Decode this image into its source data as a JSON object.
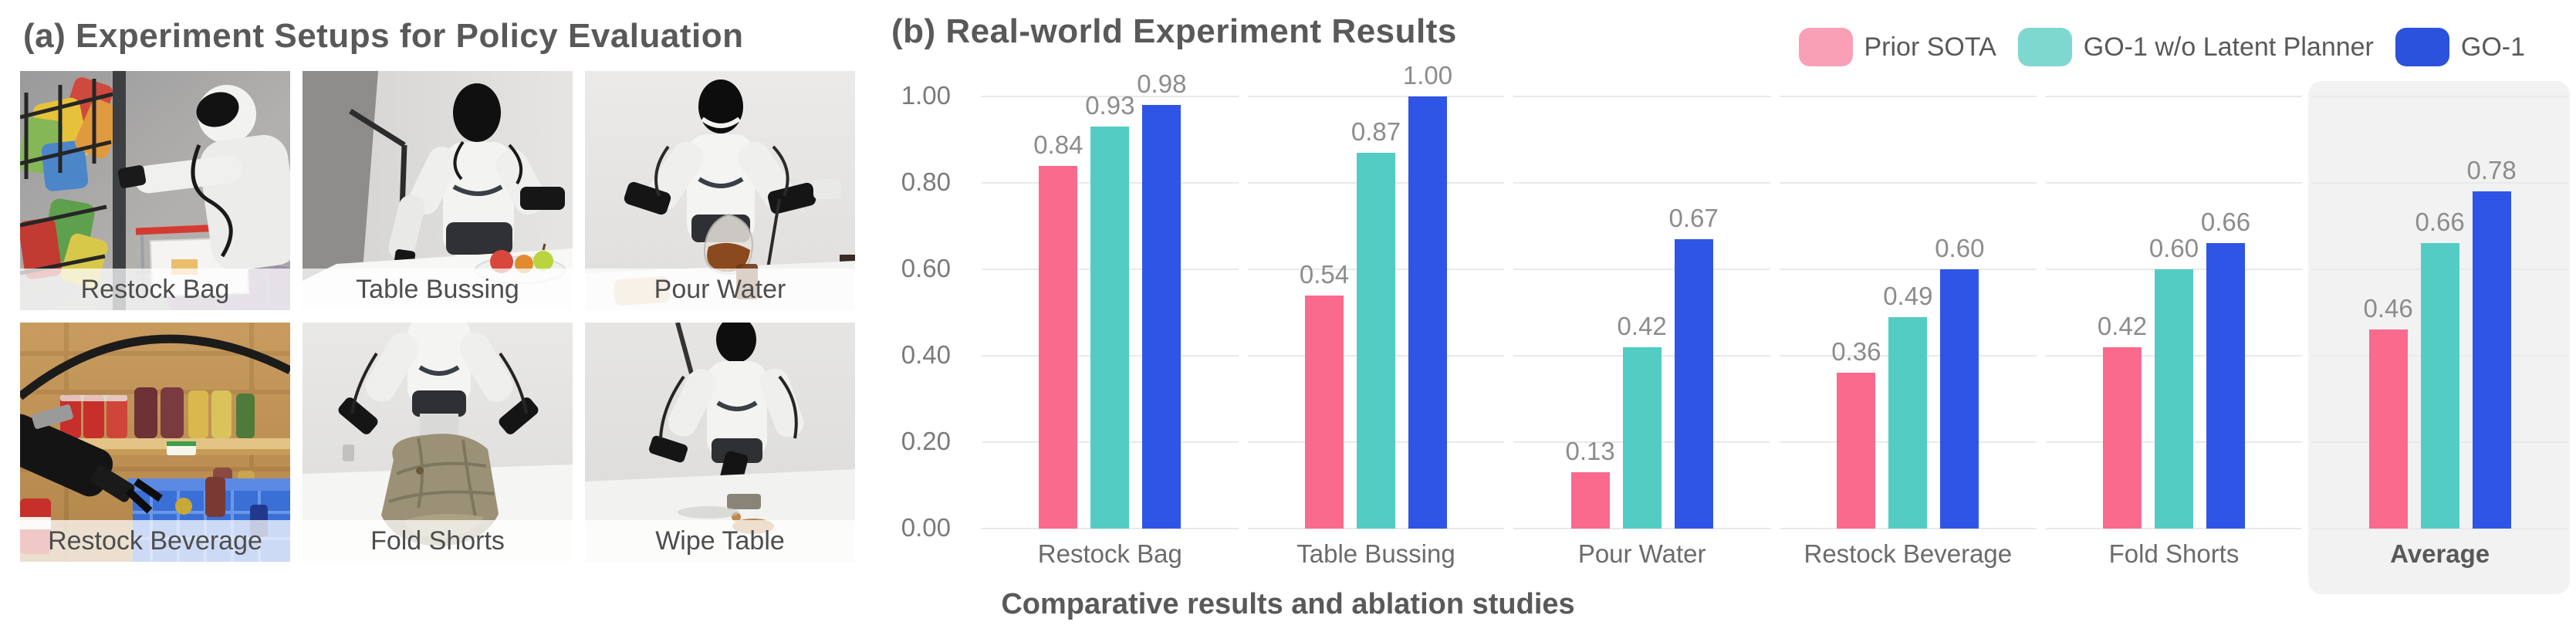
{
  "figure": {
    "left_title": "(a) Experiment Setups for Policy Evaluation",
    "right_title": "(b) Real-world Experiment Results",
    "caption": "Comparative results and ablation studies"
  },
  "setups": {
    "items": [
      {
        "label": "Restock Bag"
      },
      {
        "label": "Table Bussing"
      },
      {
        "label": "Pour Water"
      },
      {
        "label": "Restock Beverage"
      },
      {
        "label": "Fold Shorts"
      },
      {
        "label": "Wipe Table"
      }
    ]
  },
  "legend": {
    "items": [
      {
        "label": "Prior SOTA",
        "swatch_color": "#F9A0B6"
      },
      {
        "label": "GO-1 w/o Latent Planner",
        "swatch_color": "#7FD8D0"
      },
      {
        "label": "GO-1",
        "swatch_color": "#2B52DC"
      }
    ]
  },
  "chart_data": {
    "type": "bar",
    "categories": [
      "Restock Bag",
      "Table Bussing",
      "Pour Water",
      "Restock Beverage",
      "Fold Shorts",
      "Average"
    ],
    "series": [
      {
        "name": "Prior SOTA",
        "color": "#FA6A8D",
        "values": [
          0.84,
          0.54,
          0.13,
          0.36,
          0.42,
          0.46
        ]
      },
      {
        "name": "GO-1 w/o Latent Planner",
        "color": "#53CDC3",
        "values": [
          0.93,
          0.87,
          0.42,
          0.49,
          0.6,
          0.66
        ]
      },
      {
        "name": "GO-1",
        "color": "#2F55E6",
        "values": [
          0.98,
          1.0,
          0.67,
          0.6,
          0.66,
          0.78
        ]
      }
    ],
    "yticks": [
      "0.00",
      "0.20",
      "0.40",
      "0.60",
      "0.80",
      "1.00"
    ],
    "ylim": [
      0,
      1
    ],
    "grid": true,
    "value_labels": true,
    "legend_position": "top-right",
    "highlight_category": "Average"
  },
  "colors": {
    "grid": "#E9E9E9",
    "highlight_bg": "#F2F2F3",
    "title_text": "#595959",
    "value_label": "#8C8C8C",
    "tick_label": "#7A7A7A",
    "category_label": "#6B6B6B",
    "photo_label_text": "#4D4D4D"
  }
}
